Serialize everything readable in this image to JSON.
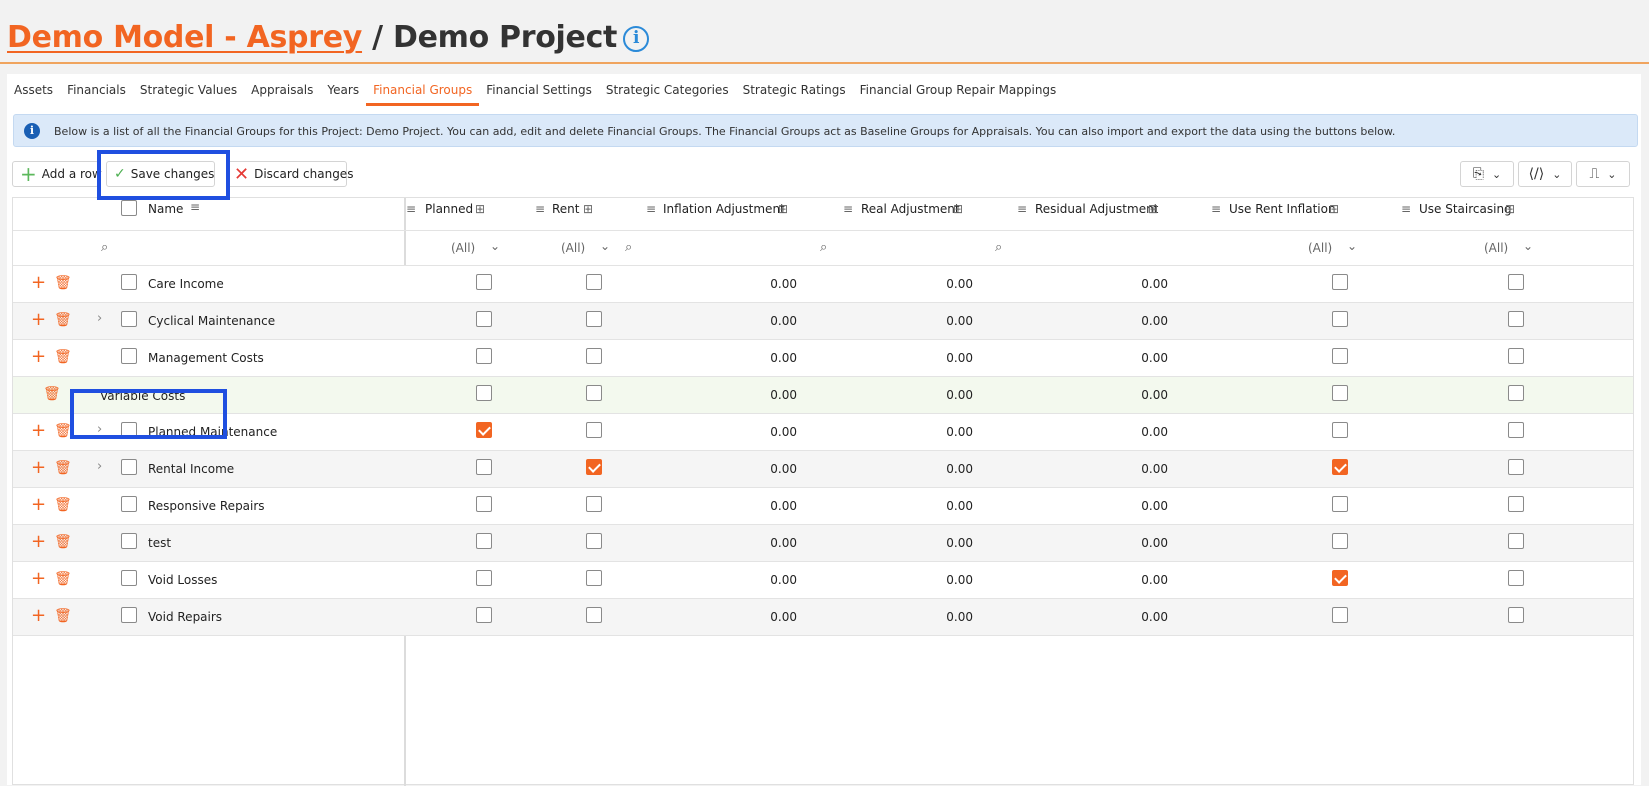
{
  "header": {
    "model": "Demo Model - Asprey",
    "separator": " / ",
    "project": "Demo Project",
    "info_glyph": "i"
  },
  "tabs": [
    {
      "label": "Assets"
    },
    {
      "label": "Financials"
    },
    {
      "label": "Strategic Values"
    },
    {
      "label": "Appraisals"
    },
    {
      "label": "Years"
    },
    {
      "label": "Financial Groups",
      "active": true
    },
    {
      "label": "Financial Settings"
    },
    {
      "label": "Strategic Categories"
    },
    {
      "label": "Strategic Ratings"
    },
    {
      "label": "Financial Group Repair Mappings"
    }
  ],
  "banner": {
    "text": "Below is a list of all the Financial Groups for this Project: Demo Project. You can add, edit and delete Financial Groups. The Financial Groups act as Baseline Groups for Appraisals. You can also import and export the data using the buttons below.",
    "icon": "info-icon"
  },
  "toolbar": {
    "add_label": "Add a row",
    "save_label": "Save changes",
    "discard_label": "Discard changes"
  },
  "columns": {
    "name": "Name",
    "planned": "Planned",
    "rent": "Rent",
    "inflation": "Inflation Adjustment",
    "real": "Real Adjustment",
    "residual": "Residual Adjustment",
    "use_rent_inflation": "Use Rent Inflation",
    "use_staircasing": "Use Staircasing"
  },
  "filters": {
    "all": "(All)"
  },
  "rows": [
    {
      "name": "Care Income",
      "expandable": false,
      "planned": false,
      "rent": false,
      "inflation": "0.00",
      "real": "0.00",
      "residual": "0.00",
      "use_rent_inflation": false,
      "use_staircasing": false
    },
    {
      "name": "Cyclical Maintenance",
      "expandable": true,
      "planned": false,
      "rent": false,
      "inflation": "0.00",
      "real": "0.00",
      "residual": "0.00",
      "use_rent_inflation": false,
      "use_staircasing": false
    },
    {
      "name": "Management Costs",
      "expandable": false,
      "planned": false,
      "rent": false,
      "inflation": "0.00",
      "real": "0.00",
      "residual": "0.00",
      "use_rent_inflation": false,
      "use_staircasing": false
    },
    {
      "name": "Variable Costs",
      "editing": true,
      "planned": false,
      "rent": false,
      "inflation": "0.00",
      "real": "0.00",
      "residual": "0.00",
      "use_rent_inflation": false,
      "use_staircasing": false
    },
    {
      "name": "Planned Maintenance",
      "expandable": true,
      "planned": true,
      "rent": false,
      "inflation": "0.00",
      "real": "0.00",
      "residual": "0.00",
      "use_rent_inflation": false,
      "use_staircasing": false
    },
    {
      "name": "Rental Income",
      "expandable": true,
      "planned": false,
      "rent": true,
      "inflation": "0.00",
      "real": "0.00",
      "residual": "0.00",
      "use_rent_inflation": true,
      "use_staircasing": false
    },
    {
      "name": "Responsive Repairs",
      "expandable": false,
      "planned": false,
      "rent": false,
      "inflation": "0.00",
      "real": "0.00",
      "residual": "0.00",
      "use_rent_inflation": false,
      "use_staircasing": false
    },
    {
      "name": "test",
      "expandable": false,
      "planned": false,
      "rent": false,
      "inflation": "0.00",
      "real": "0.00",
      "residual": "0.00",
      "use_rent_inflation": false,
      "use_staircasing": false
    },
    {
      "name": "Void Losses",
      "expandable": false,
      "planned": false,
      "rent": false,
      "inflation": "0.00",
      "real": "0.00",
      "residual": "0.00",
      "use_rent_inflation": true,
      "use_staircasing": false
    },
    {
      "name": "Void Repairs",
      "expandable": false,
      "planned": false,
      "rent": false,
      "inflation": "0.00",
      "real": "0.00",
      "residual": "0.00",
      "use_rent_inflation": false,
      "use_staircasing": false
    }
  ],
  "colors": {
    "accent": "#f26522",
    "highlight": "#1f4fe0",
    "banner_bg": "#dbe9f9",
    "edit_row_bg": "#f3f9ee"
  }
}
